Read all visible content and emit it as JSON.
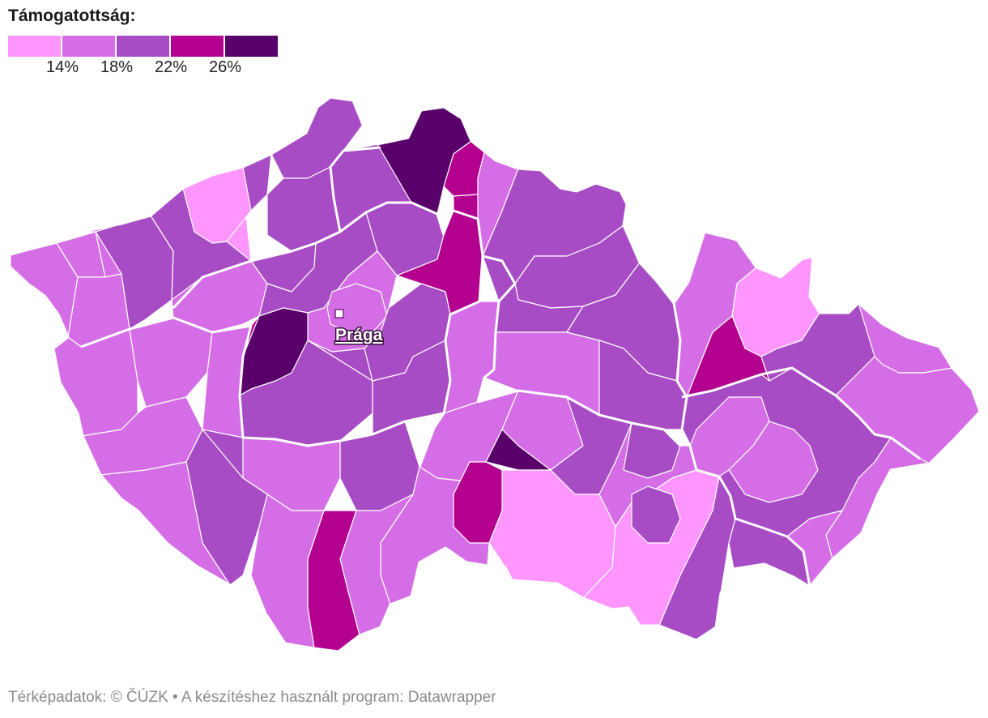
{
  "legend": {
    "title": "Támogatottság:",
    "ticks": [
      "14%",
      "18%",
      "22%",
      "26%"
    ],
    "colors": [
      "#ff96ff",
      "#d56ee6",
      "#a84cc5",
      "#b3008f",
      "#5a006b"
    ]
  },
  "map": {
    "city": {
      "name": "Prága",
      "marker": "square-marker"
    },
    "district_classes": [
      "c2",
      "c2",
      "c2",
      "c2",
      "c3",
      "c3",
      "c3",
      "c1",
      "c3",
      "c3",
      "c3",
      "c2",
      "c2",
      "c2",
      "c2",
      "c3",
      "c3",
      "c3",
      "c4",
      "c5",
      "c4",
      "c3",
      "c3",
      "c1",
      "c3",
      "c3",
      "c2",
      "c2",
      "c3",
      "c5",
      "c4",
      "c4",
      "c2",
      "c3",
      "c3",
      "c3",
      "c2",
      "c2",
      "c2",
      "c2",
      "c3",
      "c2",
      "c2",
      "c4",
      "c2",
      "c3",
      "c2",
      "c3",
      "c3",
      "c1",
      "c2",
      "c1",
      "c3",
      "c3",
      "c2",
      "c1",
      "c4",
      "c3",
      "c2",
      "c2",
      "c2",
      "c3",
      "c3",
      "c2",
      "c2",
      "c2",
      "c3",
      "c4",
      "c2",
      "c2",
      "c3",
      "c5",
      "c5",
      "c4",
      "c3"
    ]
  },
  "footer": {
    "text": "Térképadatok: © ČÚZK  • A készítéshez használt program: Datawrapper"
  }
}
